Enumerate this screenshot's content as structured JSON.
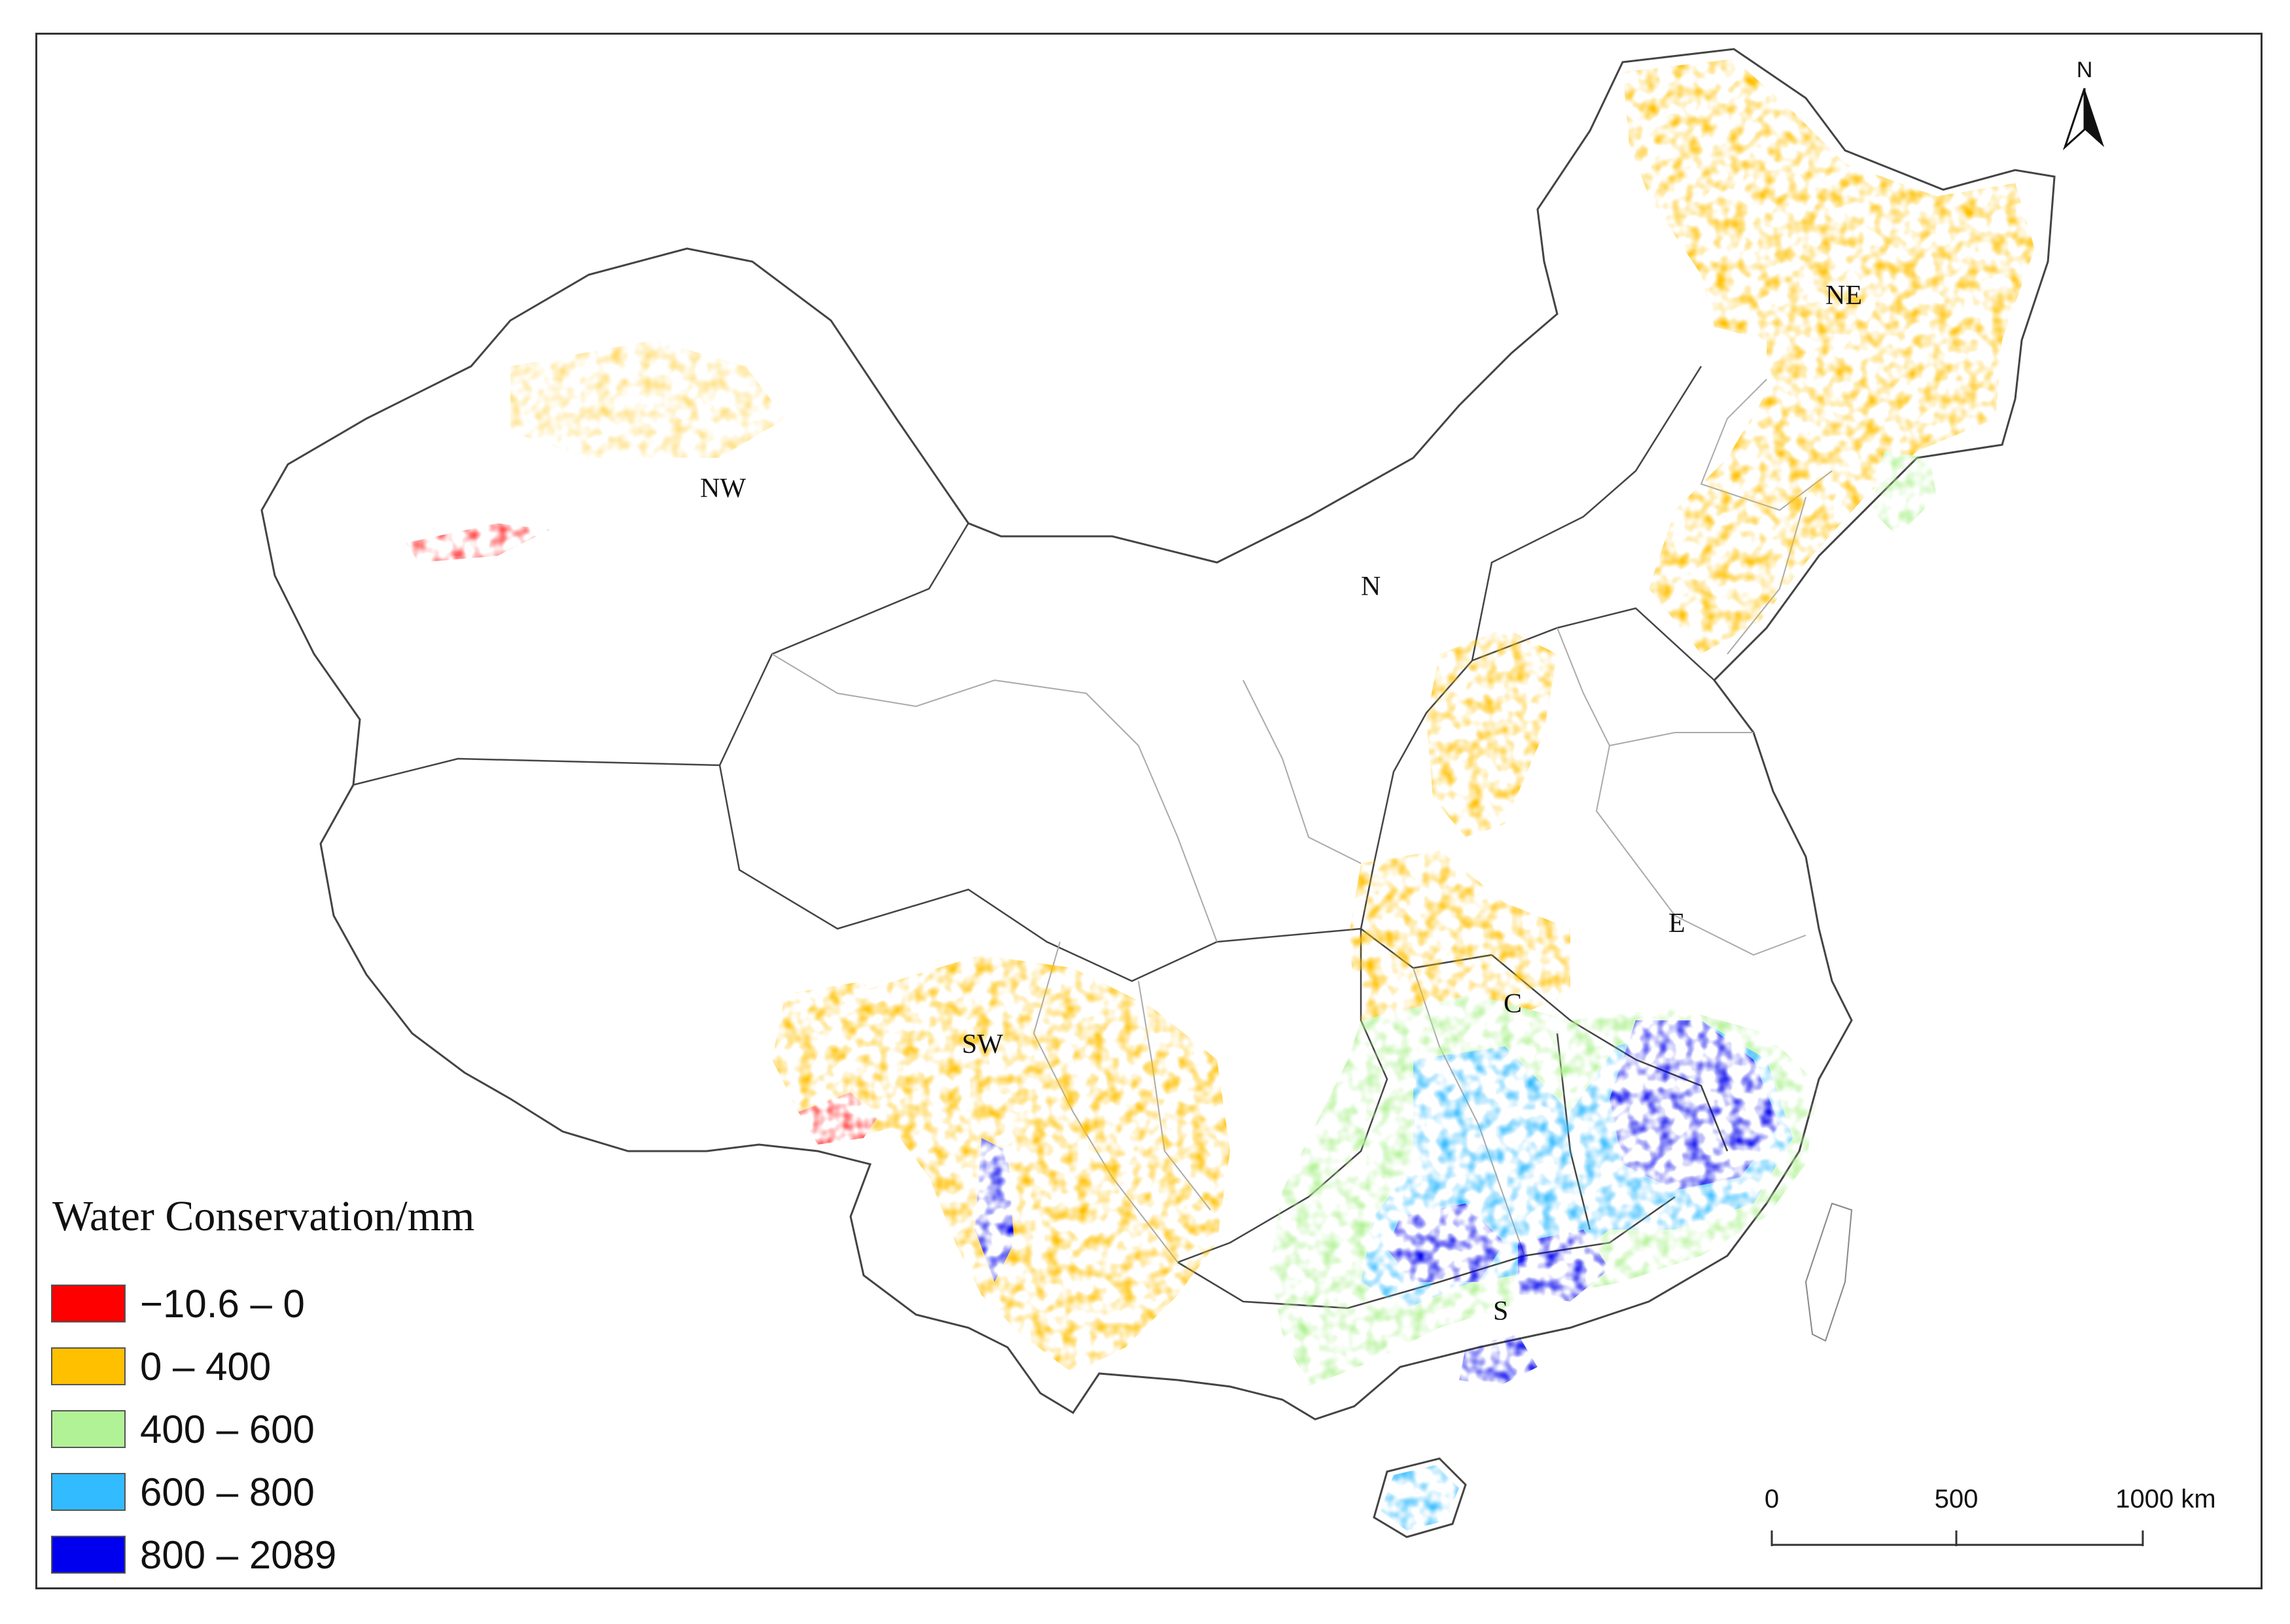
{
  "map": {
    "region_labels": [
      "NW",
      "N",
      "NE",
      "E",
      "C",
      "SW",
      "S"
    ],
    "north_label": "N"
  },
  "legend": {
    "title": "Water Conservation/mm",
    "items": [
      {
        "label": "−10.6 – 0",
        "color": "#ff0000"
      },
      {
        "label": "0 – 400",
        "color": "#ffc000"
      },
      {
        "label": "400 – 600",
        "color": "#b2f296"
      },
      {
        "label": "600 – 800",
        "color": "#33bbff"
      },
      {
        "label": "800 – 2089",
        "color": "#0000ee"
      }
    ]
  },
  "scale_bar": {
    "ticks": [
      "0",
      "500",
      "1000 km"
    ]
  }
}
